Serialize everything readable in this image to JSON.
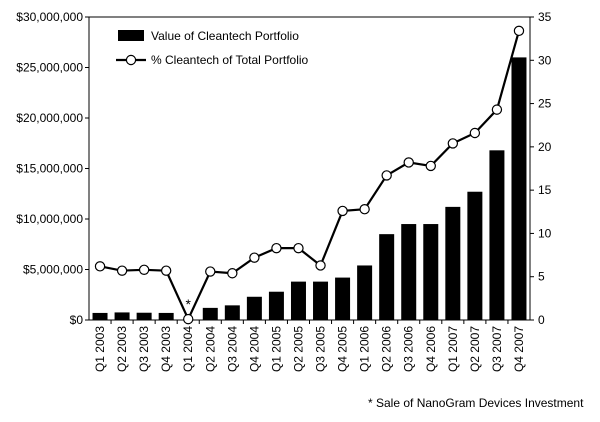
{
  "chart_data": {
    "type": "bar",
    "categories": [
      "Q1 2003",
      "Q2 2003",
      "Q3 2003",
      "Q4 2003",
      "Q1 2004",
      "Q2 2004",
      "Q3 2004",
      "Q4 2004",
      "Q1 2005",
      "Q2 2005",
      "Q3 2005",
      "Q4 2005",
      "Q1 2006",
      "Q2 2006",
      "Q3 2006",
      "Q4 2006",
      "Q1 2007",
      "Q2 2007",
      "Q3 2007",
      "Q4 2007"
    ],
    "series": [
      {
        "name": "Value of Cleantech Portfolio",
        "type": "bar",
        "axis": "left",
        "values": [
          700000,
          750000,
          720000,
          700000,
          0,
          1200000,
          1450000,
          2300000,
          2800000,
          3800000,
          3800000,
          4200000,
          5400000,
          8500000,
          9500000,
          9500000,
          11200000,
          12700000,
          16800000,
          26000000
        ]
      },
      {
        "name": "% Cleantech of Total Portfolio",
        "type": "line",
        "axis": "right",
        "values": [
          6.2,
          5.7,
          5.8,
          5.7,
          0.1,
          5.6,
          5.4,
          7.2,
          8.3,
          8.3,
          6.3,
          12.6,
          12.8,
          16.7,
          18.2,
          17.8,
          20.4,
          21.6,
          24.3,
          33.4
        ]
      }
    ],
    "y_left": {
      "ylim": [
        0,
        30000000
      ],
      "ticks": [
        "$0",
        "$5,000,000",
        "$10,000,000",
        "$15,000,000",
        "$20,000,000",
        "$25,000,000",
        "$30,000,000"
      ]
    },
    "y_right": {
      "ylim": [
        0,
        35
      ],
      "ticks": [
        "0",
        "5",
        "10",
        "15",
        "20",
        "25",
        "30",
        "35"
      ]
    },
    "annotations": [
      {
        "category": "Q1 2004",
        "text": "*"
      }
    ],
    "footnote": "* Sale of NanoGram Devices Investment",
    "legend_position": "top-left",
    "grid": false,
    "colors": {
      "bars": "#000000",
      "line": "#000000",
      "markers_fill": "#ffffff"
    }
  }
}
